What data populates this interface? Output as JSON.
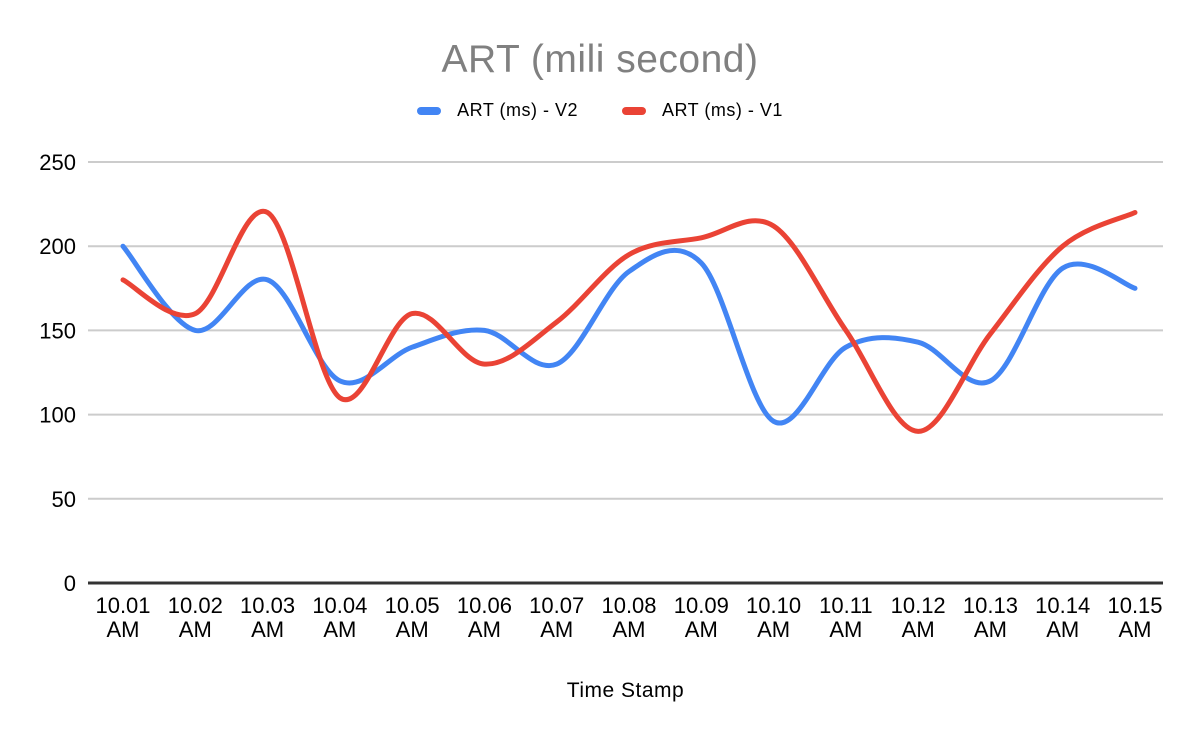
{
  "chart_data": {
    "type": "line",
    "smooth": true,
    "title": "ART (mili second)",
    "xlabel": "Time Stamp",
    "ylabel": "",
    "categories": [
      "10.01 AM",
      "10.02 AM",
      "10.03 AM",
      "10.04 AM",
      "10.05 AM",
      "10.06 AM",
      "10.07 AM",
      "10.08 AM",
      "10.09 AM",
      "10.10 AM",
      "10.11 AM",
      "10.12 AM",
      "10.13 AM",
      "10.14 AM",
      "10.15 AM"
    ],
    "series": [
      {
        "name": "ART (ms) - V2",
        "color": "#4285F4",
        "values": [
          200,
          150,
          180,
          120,
          140,
          150,
          130,
          185,
          190,
          96,
          140,
          143,
          120,
          187,
          175
        ]
      },
      {
        "name": "ART (ms) - V1",
        "color": "#EA4335",
        "values": [
          180,
          160,
          220,
          110,
          160,
          130,
          155,
          195,
          205,
          212,
          150,
          90,
          148,
          200,
          220
        ]
      }
    ],
    "yticks": [
      0,
      50,
      100,
      150,
      200,
      250
    ],
    "ylim": [
      0,
      250
    ],
    "grid": true,
    "legend_position": "top",
    "title_color": "#808080",
    "grid_color": "#cccccc",
    "axis_line_color": "#333333",
    "tick_label_color": "#000000"
  }
}
